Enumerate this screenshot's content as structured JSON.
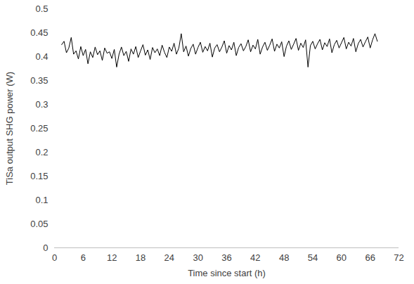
{
  "chart_data": {
    "type": "line",
    "xlabel": "Time since start (h)",
    "ylabel": "TiSa output SHG power (W)",
    "color": "#000000",
    "grid": false,
    "xlim": [
      0,
      72
    ],
    "xticks": [
      0,
      6,
      12,
      18,
      24,
      30,
      36,
      42,
      48,
      54,
      60,
      66,
      72
    ],
    "ylim": [
      0,
      0.5
    ],
    "yticks": [
      0,
      0.05,
      0.1,
      0.15,
      0.2,
      0.25,
      0.3,
      0.35,
      0.4,
      0.45,
      0.5
    ],
    "x": [
      1.5,
      2,
      2.5,
      3,
      3.5,
      4,
      4.5,
      5,
      5.5,
      6,
      6.5,
      7,
      7.5,
      8,
      8.5,
      9,
      9.5,
      10,
      10.5,
      11,
      11.5,
      12,
      12.5,
      13,
      13.5,
      14,
      14.5,
      15,
      15.5,
      16,
      16.5,
      17,
      17.5,
      18,
      18.5,
      19,
      19.5,
      20,
      20.5,
      21,
      21.5,
      22,
      22.5,
      23,
      23.5,
      24,
      24.5,
      25,
      25.5,
      26,
      26.5,
      27,
      27.5,
      28,
      28.5,
      29,
      29.5,
      30,
      30.5,
      31,
      31.5,
      32,
      32.5,
      33,
      33.5,
      34,
      34.5,
      35,
      35.5,
      36,
      36.5,
      37,
      37.5,
      38,
      38.5,
      39,
      39.5,
      40,
      40.5,
      41,
      41.5,
      42,
      42.5,
      43,
      43.5,
      44,
      44.5,
      45,
      45.5,
      46,
      46.5,
      47,
      47.5,
      48,
      48.5,
      49,
      49.5,
      50,
      50.5,
      51,
      51.5,
      52,
      52.5,
      53,
      53.5,
      54,
      54.5,
      55,
      55.5,
      56,
      56.5,
      57,
      57.5,
      58,
      58.5,
      59,
      59.5,
      60,
      60.5,
      61,
      61.5,
      62,
      62.5,
      63,
      63.5,
      64,
      64.5,
      65,
      65.5,
      66,
      66.5,
      67,
      67.5
    ],
    "values": [
      0.425,
      0.432,
      0.408,
      0.418,
      0.44,
      0.405,
      0.412,
      0.395,
      0.421,
      0.402,
      0.415,
      0.385,
      0.41,
      0.398,
      0.42,
      0.404,
      0.412,
      0.392,
      0.418,
      0.407,
      0.41,
      0.396,
      0.415,
      0.378,
      0.405,
      0.42,
      0.402,
      0.411,
      0.39,
      0.416,
      0.405,
      0.421,
      0.398,
      0.412,
      0.425,
      0.403,
      0.414,
      0.394,
      0.419,
      0.408,
      0.416,
      0.402,
      0.424,
      0.409,
      0.398,
      0.42,
      0.411,
      0.428,
      0.405,
      0.418,
      0.448,
      0.41,
      0.422,
      0.401,
      0.417,
      0.426,
      0.405,
      0.419,
      0.43,
      0.409,
      0.421,
      0.412,
      0.428,
      0.399,
      0.418,
      0.425,
      0.41,
      0.42,
      0.433,
      0.407,
      0.423,
      0.414,
      0.43,
      0.402,
      0.419,
      0.427,
      0.412,
      0.421,
      0.435,
      0.41,
      0.424,
      0.416,
      0.436,
      0.405,
      0.42,
      0.43,
      0.413,
      0.424,
      0.437,
      0.411,
      0.426,
      0.418,
      0.431,
      0.4,
      0.422,
      0.433,
      0.415,
      0.426,
      0.438,
      0.413,
      0.428,
      0.419,
      0.435,
      0.378,
      0.423,
      0.432,
      0.416,
      0.427,
      0.436,
      0.414,
      0.429,
      0.421,
      0.437,
      0.408,
      0.425,
      0.434,
      0.418,
      0.429,
      0.44,
      0.416,
      0.43,
      0.422,
      0.438,
      0.41,
      0.427,
      0.436,
      0.42,
      0.431,
      0.441,
      0.418,
      0.435,
      0.448,
      0.432
    ]
  }
}
